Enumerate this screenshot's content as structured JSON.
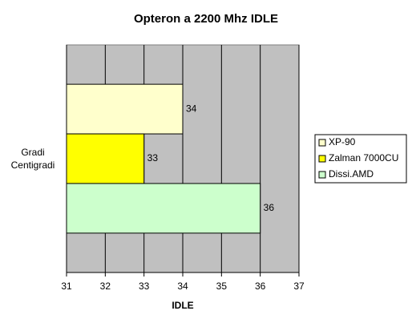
{
  "chart_data": {
    "type": "hbar",
    "title": "Opteron a 2200 Mhz IDLE",
    "categories": [
      "Gradi Centigradi"
    ],
    "x_label": "IDLE",
    "series": [
      {
        "name": "XP-90",
        "color": "#ffffcc",
        "values": [
          34
        ]
      },
      {
        "name": "Zalman 7000CU",
        "color": "#ffff00",
        "values": [
          33
        ]
      },
      {
        "name": "Dissi.AMD",
        "color": "#ccffcc",
        "values": [
          36
        ]
      }
    ],
    "xlim": [
      31,
      37
    ],
    "xticks": [
      31,
      32,
      33,
      34,
      35,
      36,
      37
    ],
    "grid": true,
    "plot_color": "#c0c0c0",
    "legend": "right"
  }
}
